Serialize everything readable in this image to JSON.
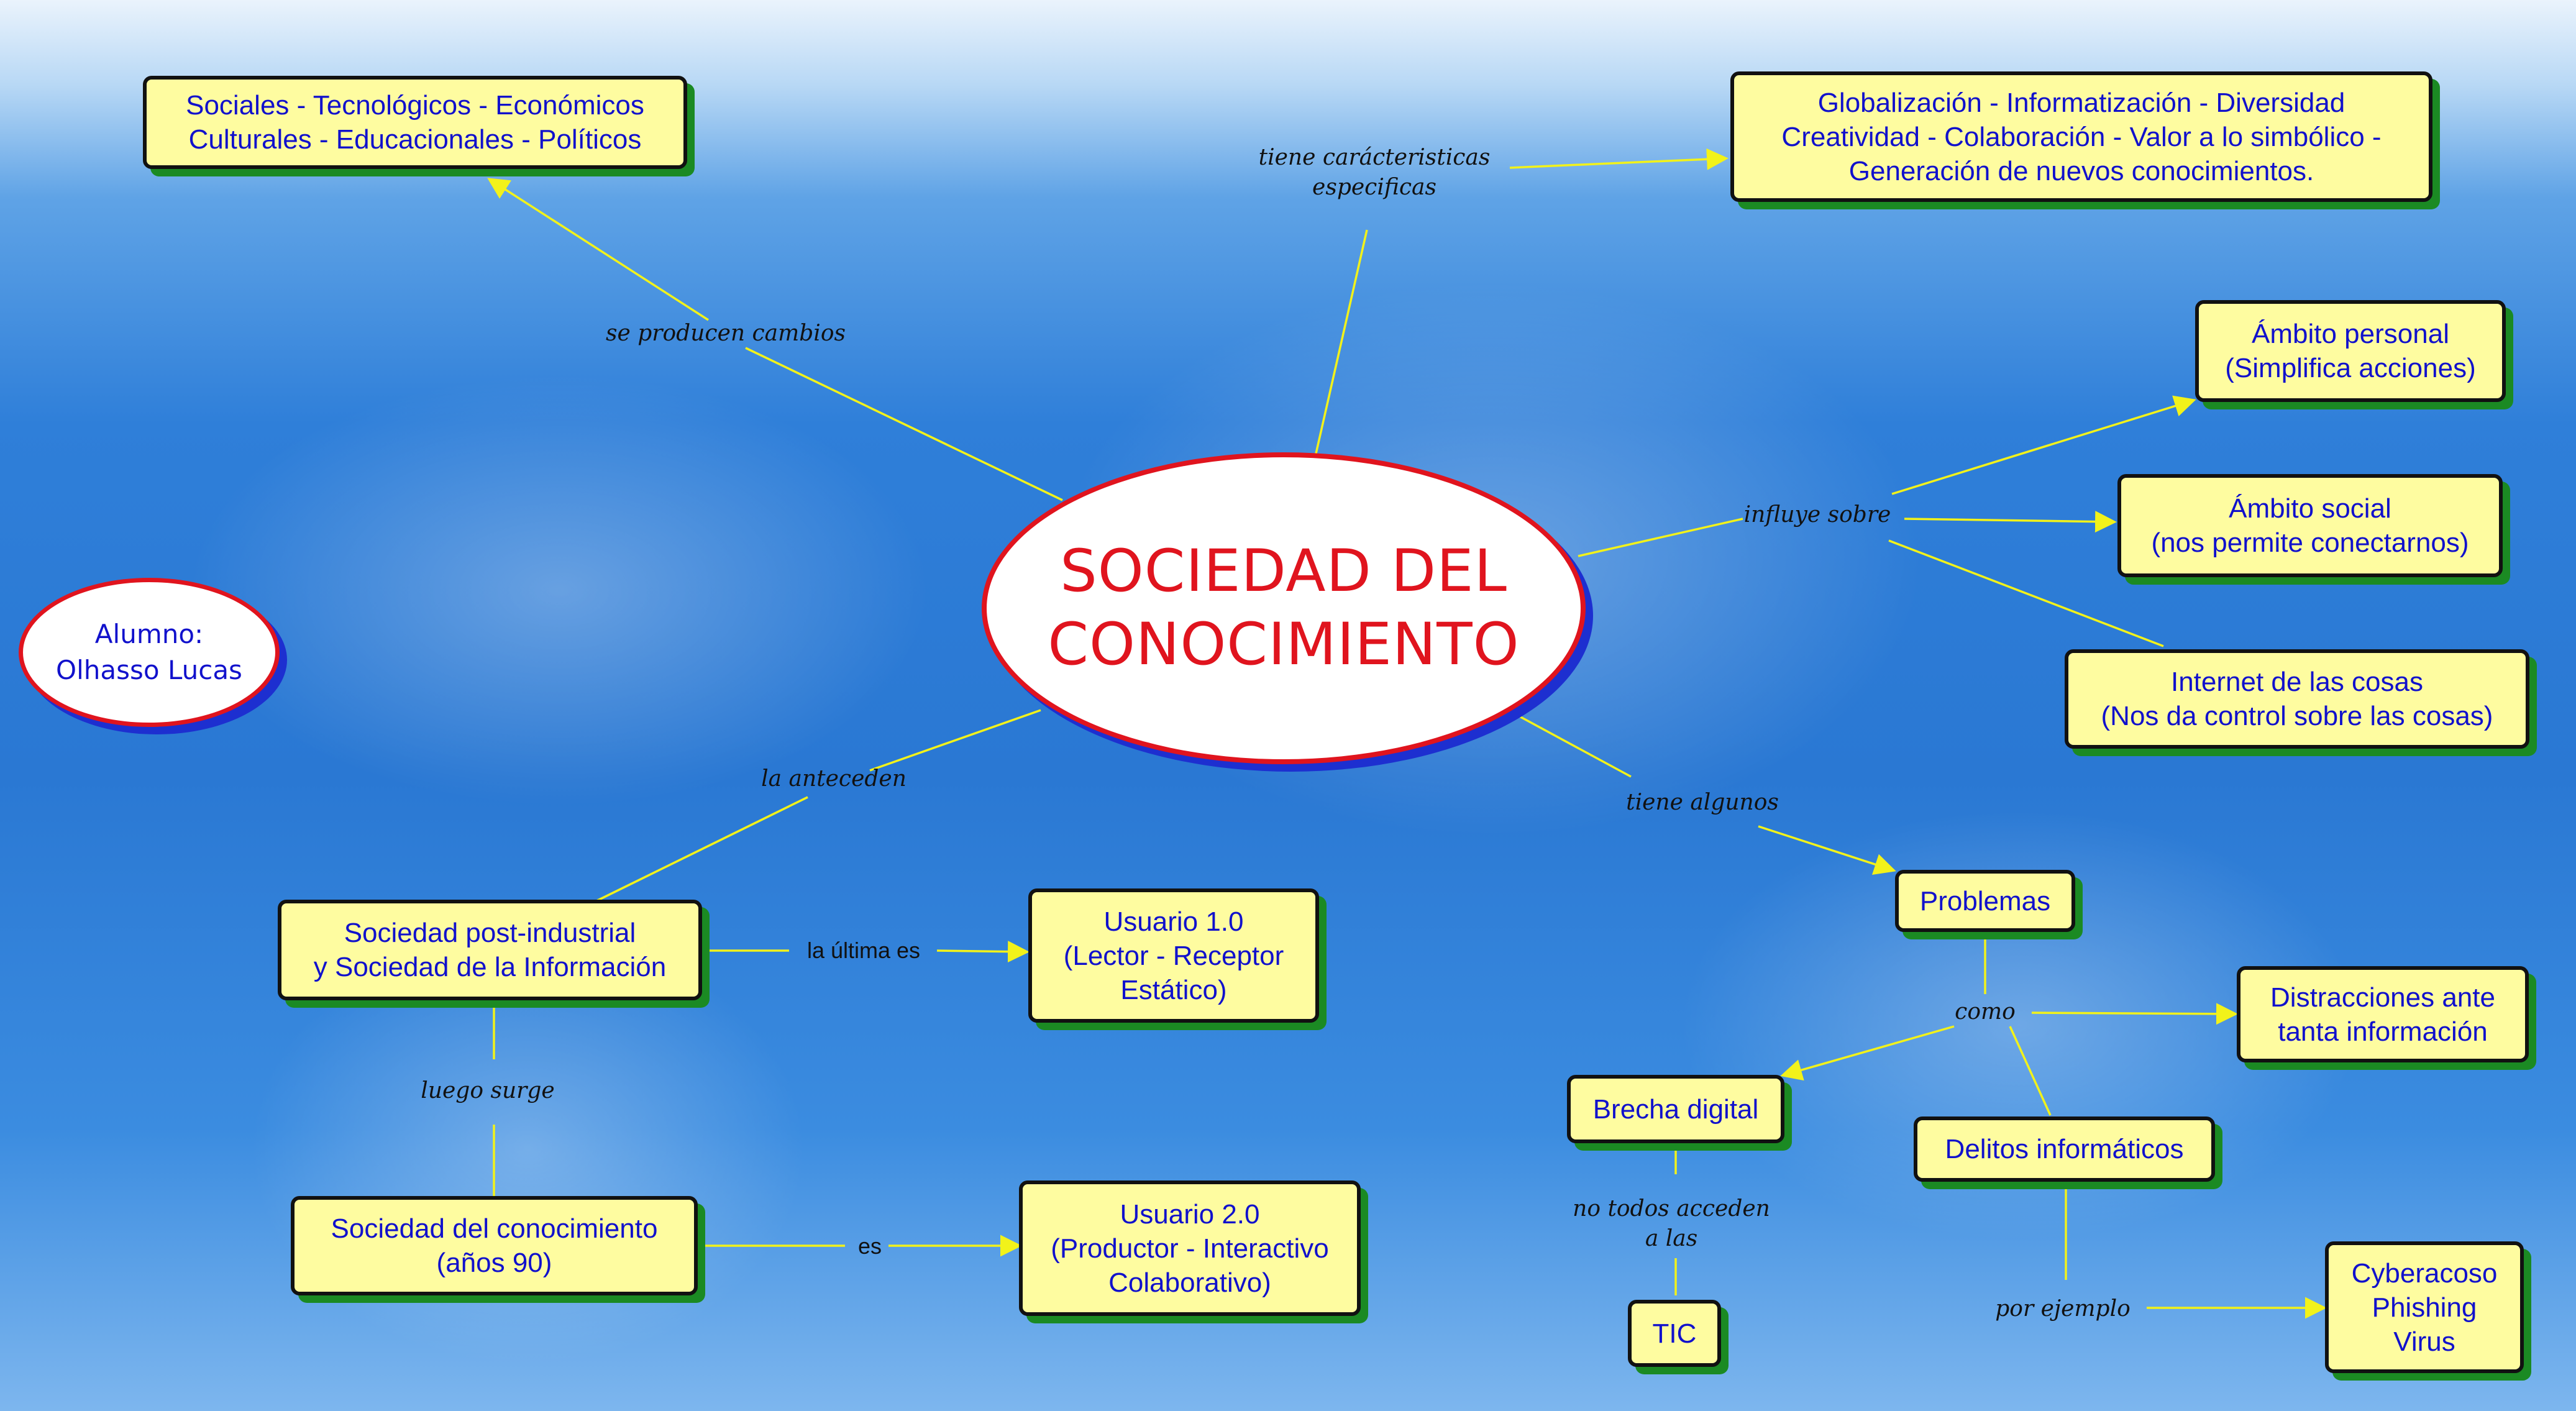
{
  "map": {
    "center": {
      "lines": [
        "SOCIEDAD DEL",
        "CONOCIMIENTO"
      ]
    },
    "author": {
      "lines": [
        "Alumno:",
        "Olhasso Lucas"
      ]
    },
    "concepts": {
      "cambios": {
        "lines": [
          "Sociales - Tecnológicos - Económicos",
          "Culturales - Educacionales - Políticos"
        ]
      },
      "caracteristicas": {
        "lines": [
          "Globalización - Informatización - Diversidad",
          "Creatividad - Colaboración - Valor a lo simbólico -",
          "Generación de nuevos conocimientos."
        ]
      },
      "ambito_personal": {
        "lines": [
          "Ámbito personal",
          "(Simplifica acciones)"
        ]
      },
      "ambito_social": {
        "lines": [
          "Ámbito social",
          "(nos permite conectarnos)"
        ]
      },
      "internet_cosas": {
        "lines": [
          "Internet de las cosas",
          "(Nos da control sobre las cosas)"
        ]
      },
      "post_industrial": {
        "lines": [
          "Sociedad post-industrial",
          "y Sociedad de la Información"
        ]
      },
      "usuario_1": {
        "lines": [
          "Usuario 1.0",
          "(Lector - Receptor",
          "Estático)"
        ]
      },
      "sociedad_conocimiento": {
        "lines": [
          "Sociedad del conocimiento",
          "(años 90)"
        ]
      },
      "usuario_2": {
        "lines": [
          "Usuario 2.0",
          "(Productor - Interactivo",
          "Colaborativo)"
        ]
      },
      "problemas": {
        "lines": [
          "Problemas"
        ]
      },
      "distracciones": {
        "lines": [
          "Distracciones ante",
          "tanta información"
        ]
      },
      "brecha": {
        "lines": [
          "Brecha digital"
        ]
      },
      "delitos": {
        "lines": [
          "Delitos informáticos"
        ]
      },
      "tic": {
        "lines": [
          "TIC"
        ]
      },
      "ciber": {
        "lines": [
          "Cyberacoso",
          "Phishing",
          "Virus"
        ]
      }
    },
    "links": {
      "caracteristicas": {
        "lines": [
          "tiene carácteristicas",
          "especificas"
        ]
      },
      "cambios": {
        "lines": [
          "se producen cambios"
        ]
      },
      "influye": {
        "lines": [
          "influye sobre"
        ]
      },
      "anteceden": {
        "lines": [
          "la anteceden"
        ]
      },
      "tiene_algunos": {
        "lines": [
          "tiene algunos"
        ]
      },
      "ultima": {
        "lines": [
          "la última es"
        ]
      },
      "luego": {
        "lines": [
          "luego surge"
        ]
      },
      "es": {
        "lines": [
          "es"
        ]
      },
      "como": {
        "lines": [
          "como"
        ]
      },
      "no_todos": {
        "lines": [
          "no todos acceden",
          "a las"
        ]
      },
      "por_ejemplo": {
        "lines": [
          "por ejemplo"
        ]
      }
    }
  },
  "colors": {
    "line": "#f2f21a",
    "node_fill": "#fefca0",
    "node_text": "#1111cc",
    "node_shadow": "#1b8a23",
    "center_border": "#e0141e",
    "center_shadow": "#1d2fd0"
  }
}
